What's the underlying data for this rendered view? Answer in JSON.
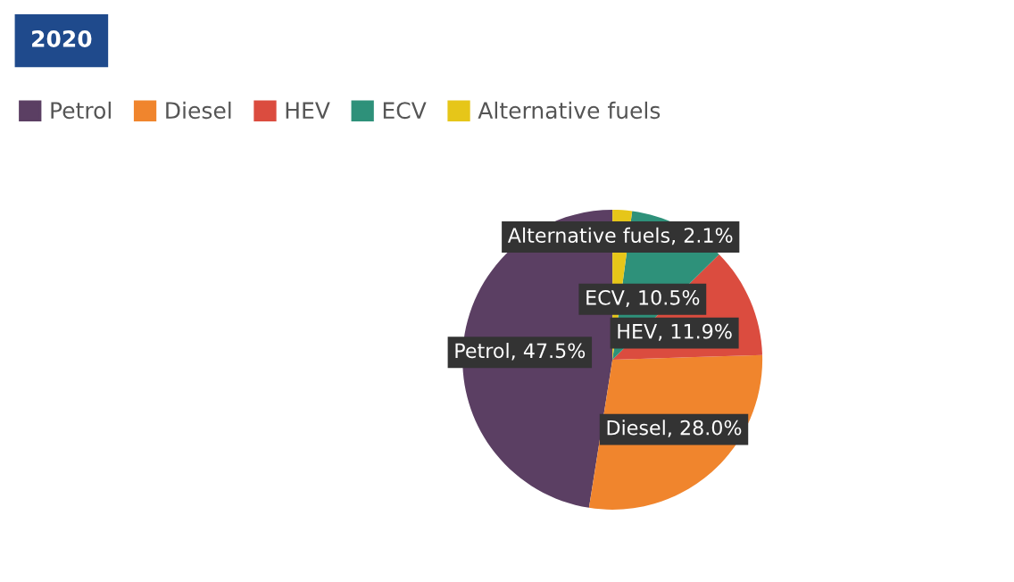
{
  "chart_data": {
    "type": "pie",
    "title": "2020",
    "categories": [
      "Petrol",
      "Diesel",
      "HEV",
      "ECV",
      "Alternative fuels"
    ],
    "values": [
      47.5,
      28.0,
      11.9,
      10.5,
      2.1
    ],
    "colors": [
      "#5b3f63",
      "#f0852d",
      "#db4c3f",
      "#2e917a",
      "#e6c619"
    ],
    "value_labels": [
      "Petrol, 47.5%",
      "Diesel, 28.0%",
      "HEV, 11.9%",
      "ECV, 10.5%",
      "Alternative fuels, 2.1%"
    ],
    "legend": "top left"
  }
}
